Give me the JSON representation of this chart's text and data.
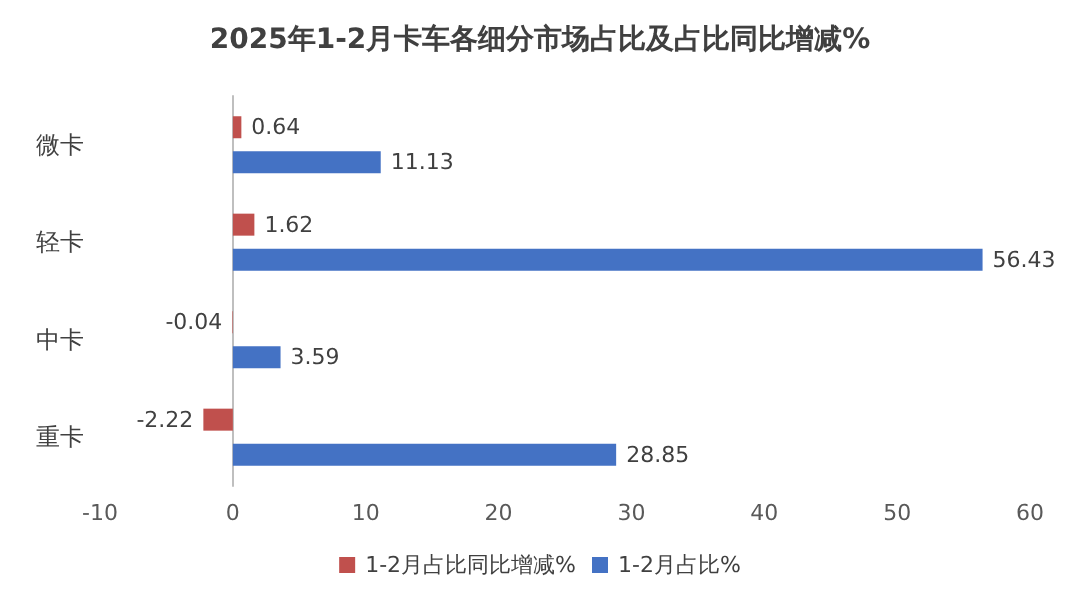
{
  "chart_data": {
    "type": "bar",
    "orientation": "horizontal",
    "title": "2025年1-2月卡车各细分市场占比及占比同比增减%",
    "categories": [
      "微卡",
      "轻卡",
      "中卡",
      "重卡"
    ],
    "series": [
      {
        "name": "1-2月占比同比增减%",
        "color": "#c0504d",
        "values": [
          0.64,
          1.62,
          -0.04,
          -2.22
        ]
      },
      {
        "name": "1-2月占比%",
        "color": "#4472c4",
        "values": [
          11.13,
          56.43,
          3.59,
          28.85
        ]
      }
    ],
    "xlim": [
      -10,
      60
    ],
    "xticks": [
      -10,
      0,
      10,
      20,
      30,
      40,
      50,
      60
    ],
    "data_labels": true,
    "legend": "bottom"
  }
}
